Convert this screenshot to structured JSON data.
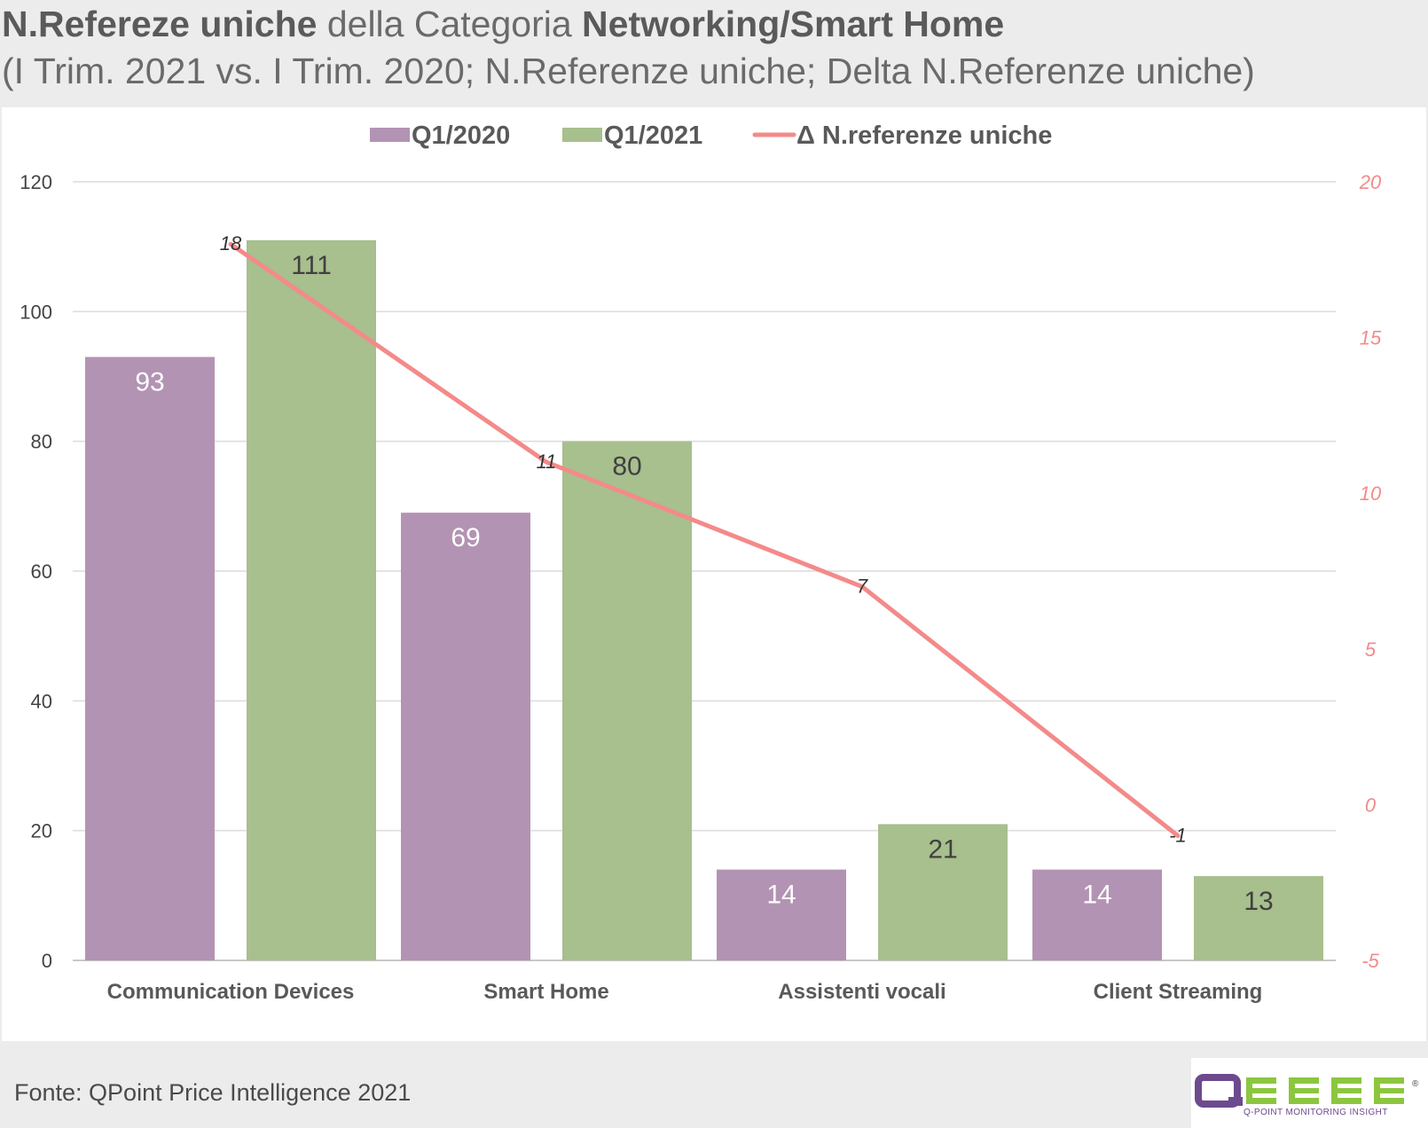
{
  "title": {
    "line1_bold_a": "N.Refereze uniche",
    "line1_light": " della Categoria ",
    "line1_bold_b": "Networking/Smart Home",
    "line2": "(I Trim. 2021 vs. I Trim. 2020; N.Referenze uniche; Delta N.Referenze uniche)"
  },
  "source": "Fonte: QPoint Price Intelligence 2021",
  "logo": {
    "wordmark": "QBERG",
    "tagline": "Q-POINT MONITORING INSIGHT",
    "registered": "®",
    "colors": {
      "purple": "#6d4a8e",
      "green": "#8cc63f"
    }
  },
  "chart_data": {
    "type": "bar",
    "categories": [
      "Communication Devices",
      "Smart Home",
      "Assistenti vocali",
      "Client Streaming"
    ],
    "series": [
      {
        "name": "Q1/2020",
        "type": "bar",
        "axis": "left",
        "color": "#b393b3",
        "label_color": "#ffffff",
        "values": [
          93,
          69,
          14,
          14
        ]
      },
      {
        "name": "Q1/2021",
        "type": "bar",
        "axis": "left",
        "color": "#a8bf8e",
        "label_color": "#404040",
        "values": [
          111,
          80,
          21,
          13
        ]
      },
      {
        "name": "Δ N.referenze uniche",
        "type": "line",
        "axis": "right",
        "color": "#f48a8a",
        "values": [
          18,
          11,
          7,
          -1
        ]
      }
    ],
    "y_left": {
      "min": 0,
      "max": 120,
      "ticks": [
        "0",
        "20",
        "40",
        "60",
        "80",
        "100",
        "120"
      ]
    },
    "y_right": {
      "min": -5,
      "max": 20,
      "ticks": [
        "-5",
        "0",
        "5",
        "10",
        "15",
        "20"
      ],
      "color": "#f48a8a"
    },
    "grid": true,
    "legend_position": "top-center"
  }
}
